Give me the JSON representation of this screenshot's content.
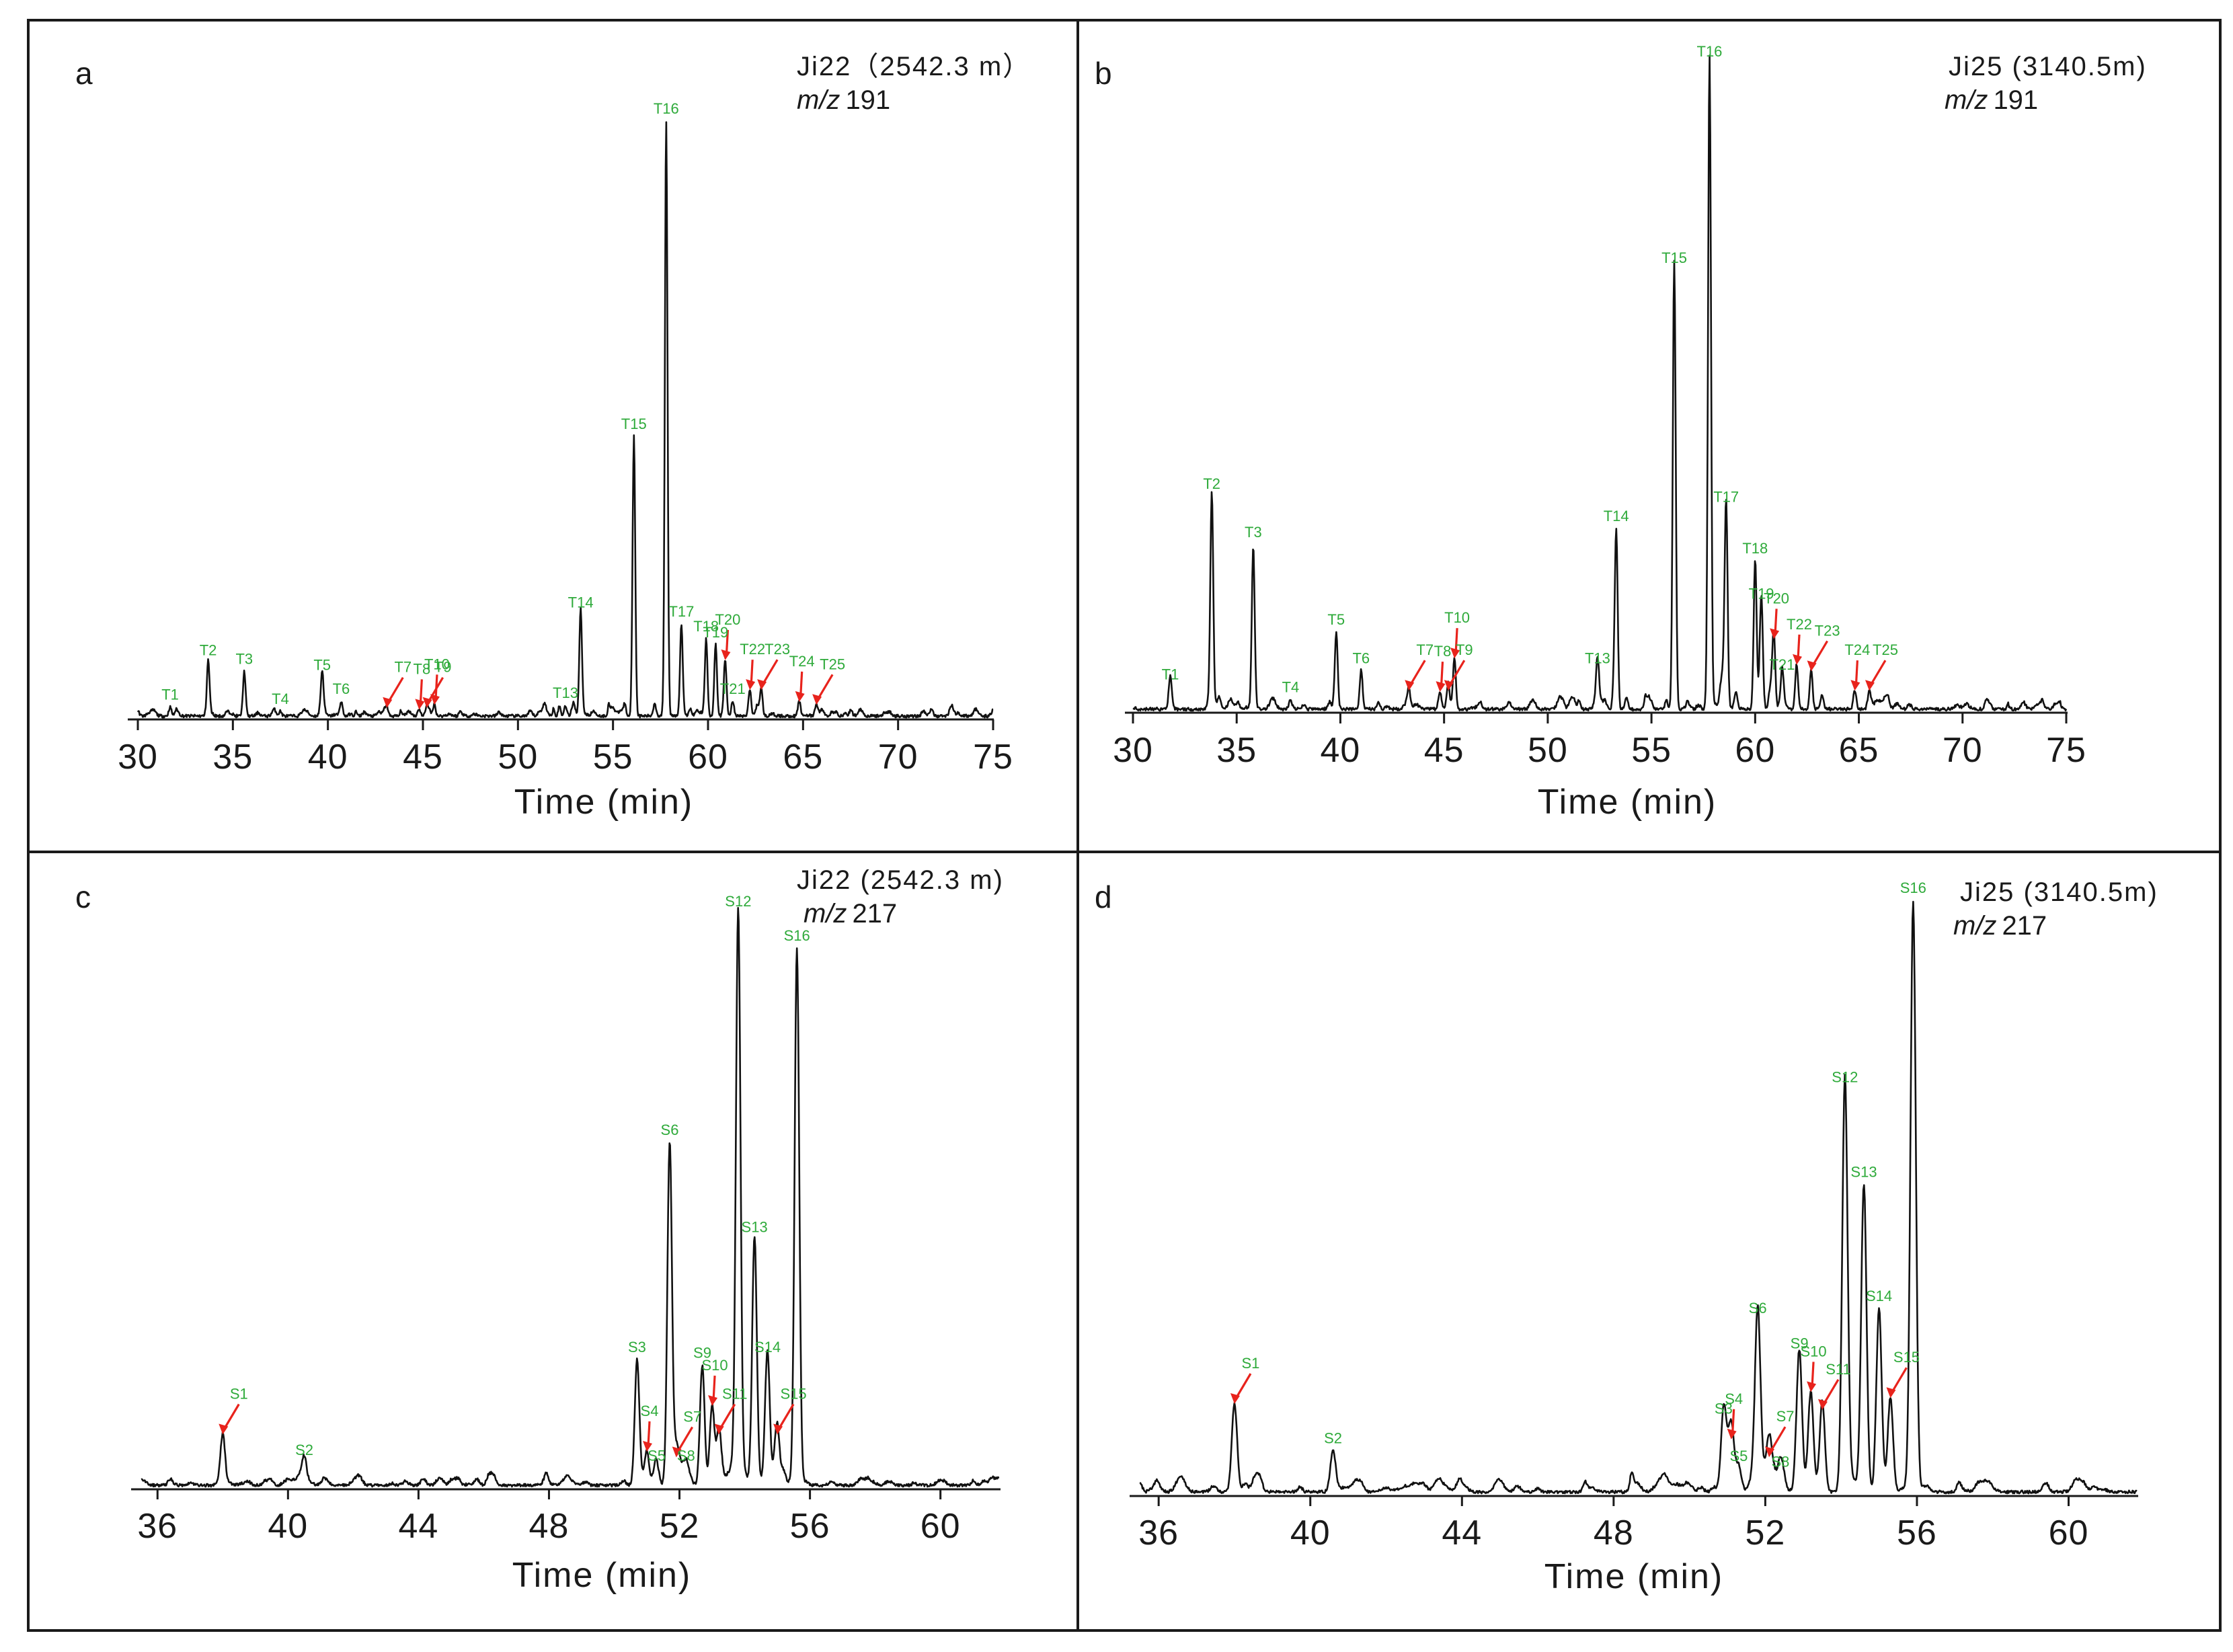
{
  "figure": {
    "panels": [
      {
        "letter": "a",
        "sample": "Ji22（2542.3 m）",
        "mz_prefix": "m/z",
        "mz_value": "191",
        "xlabel": "Time (min)"
      },
      {
        "letter": "b",
        "sample": "Ji25 (3140.5m)",
        "mz_prefix": "m/z",
        "mz_value": "191",
        "xlabel": "Time (min)"
      },
      {
        "letter": "c",
        "sample": "Ji22 (2542.3 m)",
        "mz_prefix": "m/z",
        "mz_value": "217",
        "xlabel": "Time (min)"
      },
      {
        "letter": "d",
        "sample": "Ji25 (3140.5m)",
        "mz_prefix": "m/z",
        "mz_value": "217",
        "xlabel": "Time (min)"
      }
    ]
  },
  "colors": {
    "trace": "#111111",
    "peak_label": "#2eaa3a",
    "arrow": "#e8231c",
    "frame": "#1a1a1a"
  },
  "chart_data": [
    {
      "panel": "a",
      "type": "line",
      "title": "Ji22（2542.3 m） m/z 191",
      "xlabel": "Time (min)",
      "ylabel": "",
      "xlim": [
        30,
        75
      ],
      "ylim": [
        0,
        100
      ],
      "xticks": [
        30,
        35,
        40,
        45,
        50,
        55,
        60,
        65,
        70,
        75
      ],
      "peaks": [
        {
          "label": "T1",
          "x": 31.7,
          "y": 1.5,
          "arrow": false
        },
        {
          "label": "T2",
          "x": 33.7,
          "y": 9,
          "arrow": false
        },
        {
          "label": "T3",
          "x": 35.6,
          "y": 7.5,
          "arrow": false
        },
        {
          "label": "T4",
          "x": 37.5,
          "y": 0.8,
          "arrow": false
        },
        {
          "label": "T5",
          "x": 39.7,
          "y": 6.5,
          "arrow": false
        },
        {
          "label": "T6",
          "x": 40.7,
          "y": 2.5,
          "arrow": false
        },
        {
          "label": "T7",
          "x": 43.1,
          "y": 1.5,
          "arrow": true
        },
        {
          "label": "T8",
          "x": 44.8,
          "y": 1.2,
          "arrow": true
        },
        {
          "label": "T9",
          "x": 45.2,
          "y": 1.5,
          "arrow": true
        },
        {
          "label": "T10",
          "x": 45.6,
          "y": 2,
          "arrow": true
        },
        {
          "label": "T13",
          "x": 52.5,
          "y": 1.8,
          "arrow": false
        },
        {
          "label": "T14",
          "x": 53.3,
          "y": 17,
          "arrow": false
        },
        {
          "label": "T15",
          "x": 56.1,
          "y": 47,
          "arrow": false
        },
        {
          "label": "T16",
          "x": 57.8,
          "y": 100,
          "arrow": false
        },
        {
          "label": "T17",
          "x": 58.6,
          "y": 15.5,
          "arrow": false
        },
        {
          "label": "T18",
          "x": 59.9,
          "y": 13,
          "arrow": false
        },
        {
          "label": "T19",
          "x": 60.4,
          "y": 12,
          "arrow": false
        },
        {
          "label": "T20",
          "x": 60.9,
          "y": 9.5,
          "arrow": true
        },
        {
          "label": "T21",
          "x": 61.3,
          "y": 2.5,
          "arrow": false
        },
        {
          "label": "T22",
          "x": 62.2,
          "y": 4.5,
          "arrow": true
        },
        {
          "label": "T23",
          "x": 62.8,
          "y": 4.5,
          "arrow": true
        },
        {
          "label": "T24",
          "x": 64.8,
          "y": 2.5,
          "arrow": true
        },
        {
          "label": "T25",
          "x": 65.7,
          "y": 2,
          "arrow": true
        }
      ]
    },
    {
      "panel": "b",
      "type": "line",
      "title": "Ji25 (3140.5m) m/z 191",
      "xlabel": "Time (min)",
      "ylabel": "",
      "xlim": [
        30,
        75
      ],
      "ylim": [
        0,
        100
      ],
      "xticks": [
        30,
        35,
        40,
        45,
        50,
        55,
        60,
        65,
        70,
        75
      ],
      "peaks": [
        {
          "label": "T1",
          "x": 31.8,
          "y": 3.5,
          "arrow": false
        },
        {
          "label": "T2",
          "x": 33.8,
          "y": 33,
          "arrow": false
        },
        {
          "label": "T3",
          "x": 35.8,
          "y": 25.5,
          "arrow": false
        },
        {
          "label": "T4",
          "x": 37.6,
          "y": 1.5,
          "arrow": false
        },
        {
          "label": "T5",
          "x": 39.8,
          "y": 12,
          "arrow": false
        },
        {
          "label": "T6",
          "x": 41,
          "y": 6,
          "arrow": false
        },
        {
          "label": "T7",
          "x": 43.3,
          "y": 3,
          "arrow": true
        },
        {
          "label": "T8",
          "x": 44.8,
          "y": 2.8,
          "arrow": true
        },
        {
          "label": "T9",
          "x": 45.2,
          "y": 3,
          "arrow": true
        },
        {
          "label": "T10",
          "x": 45.5,
          "y": 8,
          "arrow": true
        },
        {
          "label": "T13",
          "x": 52.4,
          "y": 6,
          "arrow": false
        },
        {
          "label": "T14",
          "x": 53.3,
          "y": 28,
          "arrow": false
        },
        {
          "label": "T15",
          "x": 56.1,
          "y": 68,
          "arrow": false
        },
        {
          "label": "T16",
          "x": 57.8,
          "y": 100,
          "arrow": false
        },
        {
          "label": "T17",
          "x": 58.6,
          "y": 31,
          "arrow": false
        },
        {
          "label": "T18",
          "x": 60,
          "y": 23,
          "arrow": false
        },
        {
          "label": "T19",
          "x": 60.3,
          "y": 16,
          "arrow": false
        },
        {
          "label": "T20",
          "x": 60.9,
          "y": 11,
          "arrow": true
        },
        {
          "label": "T21",
          "x": 61.3,
          "y": 5,
          "arrow": false
        },
        {
          "label": "T22",
          "x": 62,
          "y": 7,
          "arrow": true
        },
        {
          "label": "T23",
          "x": 62.7,
          "y": 6,
          "arrow": true
        },
        {
          "label": "T24",
          "x": 64.8,
          "y": 3,
          "arrow": true
        },
        {
          "label": "T25",
          "x": 65.5,
          "y": 3,
          "arrow": true
        }
      ]
    },
    {
      "panel": "c",
      "type": "line",
      "title": "Ji22 (2542.3 m) m/z 217",
      "xlabel": "Time (min)",
      "ylabel": "",
      "xlim": [
        35.5,
        61.8
      ],
      "ylim": [
        0,
        100
      ],
      "xticks": [
        36,
        40,
        44,
        48,
        52,
        56,
        60
      ],
      "peaks": [
        {
          "label": "S1",
          "x": 38,
          "y": 9,
          "arrow": true
        },
        {
          "label": "S2",
          "x": 40.5,
          "y": 4,
          "arrow": false
        },
        {
          "label": "S3",
          "x": 50.7,
          "y": 22,
          "arrow": false
        },
        {
          "label": "S4",
          "x": 51,
          "y": 6,
          "arrow": true
        },
        {
          "label": "S5",
          "x": 51.3,
          "y": 3,
          "arrow": false
        },
        {
          "label": "S6",
          "x": 51.7,
          "y": 60,
          "arrow": false
        },
        {
          "label": "S7",
          "x": 51.9,
          "y": 5,
          "arrow": true
        },
        {
          "label": "S8",
          "x": 52.2,
          "y": 3,
          "arrow": false
        },
        {
          "label": "S9",
          "x": 52.7,
          "y": 21,
          "arrow": false
        },
        {
          "label": "S10",
          "x": 53,
          "y": 14,
          "arrow": true
        },
        {
          "label": "S11",
          "x": 53.2,
          "y": 9,
          "arrow": true
        },
        {
          "label": "S12",
          "x": 53.8,
          "y": 100,
          "arrow": false
        },
        {
          "label": "S13",
          "x": 54.3,
          "y": 43,
          "arrow": false
        },
        {
          "label": "S14",
          "x": 54.7,
          "y": 22,
          "arrow": false
        },
        {
          "label": "S15",
          "x": 55,
          "y": 9,
          "arrow": true
        },
        {
          "label": "S16",
          "x": 55.6,
          "y": 94,
          "arrow": false
        }
      ]
    },
    {
      "panel": "d",
      "type": "line",
      "title": "Ji25 (3140.5m) m/z 217",
      "xlabel": "Time (min)",
      "ylabel": "",
      "xlim": [
        35.5,
        61.8
      ],
      "ylim": [
        0,
        100
      ],
      "xticks": [
        36,
        40,
        44,
        48,
        52,
        56,
        60
      ],
      "peaks": [
        {
          "label": "S1",
          "x": 38,
          "y": 15,
          "arrow": true
        },
        {
          "label": "S2",
          "x": 40.6,
          "y": 7,
          "arrow": false
        },
        {
          "label": "S3",
          "x": 50.9,
          "y": 12,
          "arrow": false
        },
        {
          "label": "S4",
          "x": 51.1,
          "y": 9,
          "arrow": true
        },
        {
          "label": "S5",
          "x": 51.3,
          "y": 4,
          "arrow": false
        },
        {
          "label": "S6",
          "x": 51.8,
          "y": 29,
          "arrow": false
        },
        {
          "label": "S7",
          "x": 52.1,
          "y": 6,
          "arrow": true
        },
        {
          "label": "S8",
          "x": 52.4,
          "y": 3,
          "arrow": false
        },
        {
          "label": "S9",
          "x": 52.9,
          "y": 23,
          "arrow": false
        },
        {
          "label": "S10",
          "x": 53.2,
          "y": 17,
          "arrow": true
        },
        {
          "label": "S11",
          "x": 53.5,
          "y": 14,
          "arrow": true
        },
        {
          "label": "S12",
          "x": 54.1,
          "y": 68,
          "arrow": false
        },
        {
          "label": "S13",
          "x": 54.6,
          "y": 52,
          "arrow": false
        },
        {
          "label": "S14",
          "x": 55,
          "y": 31,
          "arrow": false
        },
        {
          "label": "S15",
          "x": 55.3,
          "y": 16,
          "arrow": true
        },
        {
          "label": "S16",
          "x": 55.9,
          "y": 100,
          "arrow": false
        }
      ]
    }
  ]
}
